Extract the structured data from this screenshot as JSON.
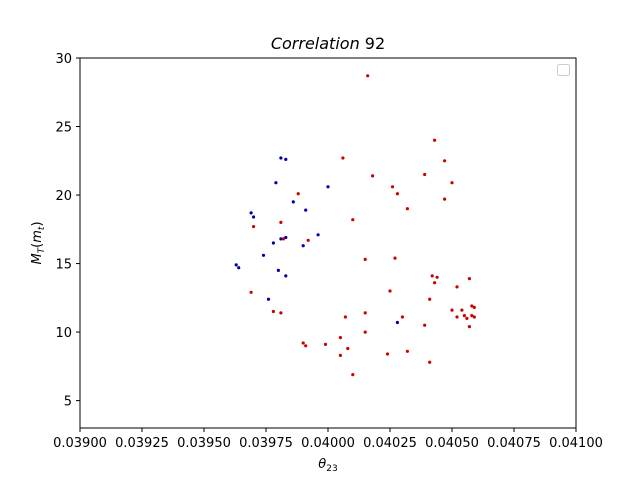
{
  "chart_data": {
    "type": "scatter",
    "title_italic": "Correlation",
    "title_number": " 92",
    "xlabel_main": "θ",
    "xlabel_sub": "23",
    "ylabel_main": "M",
    "ylabel_sub": "T",
    "ylabel_paren_open": "(",
    "ylabel_inner_main": "m",
    "ylabel_inner_sub": "t",
    "ylabel_paren_close": ")",
    "xlim": [
      0.039,
      0.041
    ],
    "ylim": [
      3,
      30
    ],
    "xticks": [
      0.039,
      0.03925,
      0.0395,
      0.03975,
      0.04,
      0.04025,
      0.0405,
      0.04075,
      0.041
    ],
    "xtick_labels": [
      "0.03900",
      "0.03925",
      "0.03950",
      "0.03975",
      "0.04000",
      "0.04025",
      "0.04050",
      "0.04075",
      "0.04100"
    ],
    "yticks": [
      5,
      10,
      15,
      20,
      25,
      30
    ],
    "ytick_labels": [
      "5",
      "10",
      "15",
      "20",
      "25",
      "30"
    ],
    "legend": "top-right (empty)",
    "grid": false,
    "series": [
      {
        "color": "#0000aa",
        "points": [
          [
            0.03981,
            22.7
          ],
          [
            0.03983,
            22.6
          ],
          [
            0.03979,
            20.9
          ],
          [
            0.04,
            20.6
          ],
          [
            0.03986,
            19.5
          ],
          [
            0.03969,
            18.7
          ],
          [
            0.0397,
            18.4
          ],
          [
            0.03991,
            18.9
          ],
          [
            0.03983,
            16.9
          ],
          [
            0.03981,
            16.8
          ],
          [
            0.03978,
            16.5
          ],
          [
            0.0399,
            16.3
          ],
          [
            0.03996,
            17.1
          ],
          [
            0.03974,
            15.6
          ],
          [
            0.03963,
            14.9
          ],
          [
            0.03964,
            14.7
          ],
          [
            0.0398,
            14.5
          ],
          [
            0.03983,
            14.1
          ],
          [
            0.03976,
            12.4
          ],
          [
            0.04028,
            10.7
          ]
        ]
      },
      {
        "color": "#cc0000",
        "points": [
          [
            0.04016,
            28.7
          ],
          [
            0.04043,
            24.0
          ],
          [
            0.04006,
            22.7
          ],
          [
            0.04047,
            22.5
          ],
          [
            0.04039,
            21.5
          ],
          [
            0.04018,
            21.4
          ],
          [
            0.0405,
            20.9
          ],
          [
            0.04026,
            20.6
          ],
          [
            0.04028,
            20.1
          ],
          [
            0.03988,
            20.1
          ],
          [
            0.04047,
            19.7
          ],
          [
            0.04032,
            19.0
          ],
          [
            0.0401,
            18.2
          ],
          [
            0.03981,
            18.0
          ],
          [
            0.0397,
            17.7
          ],
          [
            0.03982,
            16.8
          ],
          [
            0.03992,
            16.7
          ],
          [
            0.04015,
            15.3
          ],
          [
            0.04027,
            15.4
          ],
          [
            0.04042,
            14.1
          ],
          [
            0.04044,
            14.0
          ],
          [
            0.04043,
            13.6
          ],
          [
            0.04057,
            13.9
          ],
          [
            0.04025,
            13.0
          ],
          [
            0.03969,
            12.9
          ],
          [
            0.04052,
            13.3
          ],
          [
            0.04041,
            12.4
          ],
          [
            0.03978,
            11.5
          ],
          [
            0.03981,
            11.4
          ],
          [
            0.04015,
            11.4
          ],
          [
            0.04058,
            11.9
          ],
          [
            0.04059,
            11.8
          ],
          [
            0.0405,
            11.6
          ],
          [
            0.04054,
            11.6
          ],
          [
            0.04052,
            11.1
          ],
          [
            0.04055,
            11.2
          ],
          [
            0.04058,
            11.2
          ],
          [
            0.04056,
            11.0
          ],
          [
            0.04059,
            11.1
          ],
          [
            0.04057,
            10.4
          ],
          [
            0.04007,
            11.1
          ],
          [
            0.0403,
            11.1
          ],
          [
            0.04039,
            10.5
          ],
          [
            0.04015,
            10.0
          ],
          [
            0.04005,
            9.6
          ],
          [
            0.0399,
            9.2
          ],
          [
            0.03991,
            9.0
          ],
          [
            0.03999,
            9.1
          ],
          [
            0.04008,
            8.8
          ],
          [
            0.04032,
            8.6
          ],
          [
            0.04024,
            8.4
          ],
          [
            0.04005,
            8.3
          ],
          [
            0.04041,
            7.8
          ],
          [
            0.0401,
            6.9
          ]
        ]
      }
    ]
  }
}
